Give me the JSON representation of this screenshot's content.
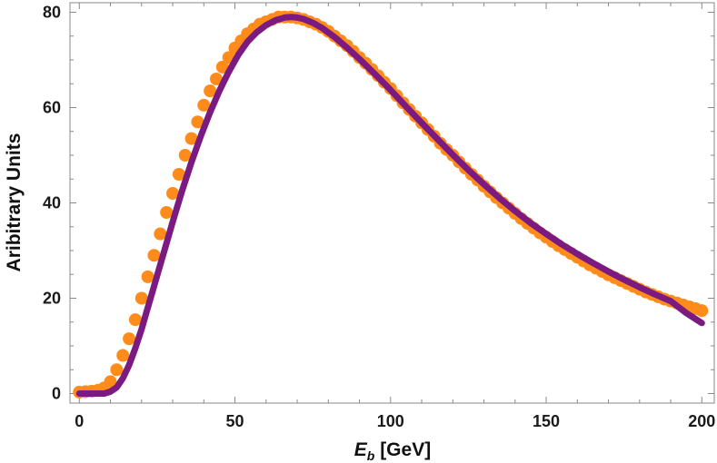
{
  "chart_data": {
    "type": "scatter",
    "xlabel_main": "E",
    "xlabel_sub": "b",
    "xlabel_unit": " [GeV]",
    "ylabel": "Aribitrary Units",
    "xlim": [
      -3,
      204
    ],
    "ylim": [
      -2,
      82
    ],
    "x_ticks": [
      0,
      50,
      100,
      150,
      200
    ],
    "y_ticks": [
      0,
      20,
      40,
      60,
      80
    ],
    "grid": false,
    "colors": {
      "points": "#ff8c1a",
      "fit": "#7b1a80",
      "frame": "#888888"
    },
    "series": [
      {
        "kind": "points",
        "x": [
          0,
          2,
          4,
          6,
          8,
          10,
          12,
          14,
          16,
          18,
          20,
          22,
          24,
          26,
          28,
          30,
          32,
          34,
          36,
          38,
          40,
          42,
          44,
          46,
          48,
          50,
          52,
          54,
          56,
          58,
          60,
          62,
          64,
          66,
          68,
          70,
          72,
          74,
          76,
          78,
          80,
          82,
          84,
          86,
          88,
          90,
          92,
          94,
          96,
          98,
          100,
          102,
          104,
          106,
          108,
          110,
          112,
          114,
          116,
          118,
          120,
          122,
          124,
          126,
          128,
          130,
          132,
          134,
          136,
          138,
          140,
          142,
          144,
          146,
          148,
          150,
          152,
          154,
          156,
          158,
          160,
          162,
          164,
          166,
          168,
          170,
          172,
          174,
          176,
          178,
          180,
          182,
          184,
          186,
          188,
          190,
          192,
          194,
          196,
          198,
          200
        ],
        "y": [
          0.3,
          0.4,
          0.5,
          0.7,
          1.2,
          2.5,
          5,
          8,
          11.5,
          15.5,
          20,
          24.5,
          29,
          33.5,
          38,
          42,
          46,
          50,
          53.5,
          57,
          60.5,
          63.5,
          66,
          68.5,
          70.5,
          72.5,
          74,
          75.5,
          76.5,
          77.5,
          78,
          78.5,
          79,
          79,
          79,
          78.8,
          78.5,
          78,
          77.5,
          76.8,
          76,
          75,
          74,
          73,
          71.8,
          70.5,
          69.3,
          68,
          66.7,
          65.3,
          64,
          62.5,
          61,
          59.6,
          58.2,
          56.8,
          55.4,
          54,
          52.5,
          51.2,
          50,
          48.6,
          47.3,
          46,
          44.8,
          43.5,
          42.3,
          41.1,
          40,
          38.9,
          37.8,
          36.7,
          35.7,
          34.7,
          33.7,
          32.8,
          31.9,
          31,
          30.2,
          29.4,
          28.6,
          27.8,
          27,
          26.3,
          25.6,
          24.9,
          24.3,
          23.7,
          23.1,
          22.5,
          21.9,
          21.3,
          20.8,
          20.3,
          19.8,
          19.4,
          19,
          18.6,
          18.2,
          17.8,
          17.4
        ]
      },
      {
        "kind": "fit",
        "x": [
          0,
          5,
          8,
          10,
          12,
          14,
          16,
          18,
          20,
          22,
          24,
          26,
          28,
          30,
          33,
          36,
          39,
          42,
          45,
          48,
          51,
          54,
          57,
          60,
          63,
          66,
          68,
          70,
          72,
          75,
          78,
          82,
          86,
          90,
          95,
          100,
          105,
          110,
          115,
          120,
          125,
          130,
          135,
          140,
          145,
          150,
          155,
          160,
          165,
          170,
          175,
          180,
          185,
          190,
          195,
          200
        ],
        "y": [
          0,
          0,
          0,
          0.4,
          1.3,
          3.2,
          6,
          9.5,
          13.5,
          18,
          22.5,
          27,
          31.5,
          36,
          42.5,
          48.5,
          54,
          59,
          63.5,
          67.5,
          71,
          73.8,
          75.8,
          77.3,
          78.3,
          78.9,
          79,
          78.9,
          78.6,
          77.8,
          76.7,
          74.8,
          72.6,
          70.2,
          67,
          63.7,
          60.2,
          56.8,
          53.4,
          50.1,
          46.9,
          43.9,
          41,
          38.3,
          35.8,
          33.5,
          31.3,
          29.3,
          27.4,
          25.6,
          23.9,
          22.3,
          20.8,
          19.4,
          16.9,
          14.8
        ]
      }
    ]
  }
}
